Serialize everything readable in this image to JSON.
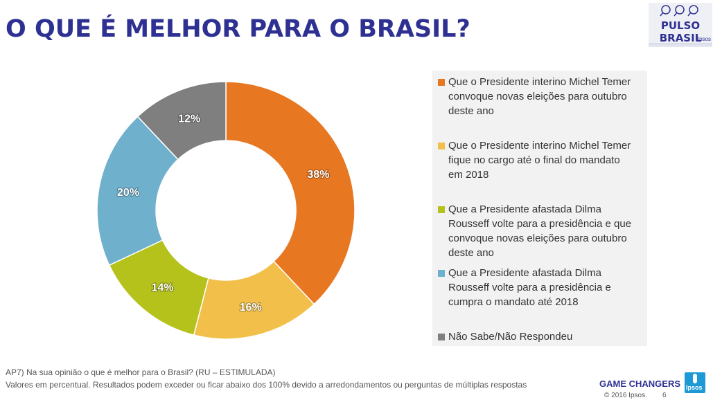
{
  "header": {
    "title": "O QUE É MELHOR PARA O BRASIL?",
    "logo_name": "PULSO BRASIL",
    "logo_sub": "Ipsos"
  },
  "chart_data": {
    "type": "pie",
    "donut": true,
    "title": "",
    "categories": [
      "Que o Presidente interino Michel Temer convoque novas eleições para outubro deste ano",
      "Que o Presidente interino Michel Temer fique no cargo até o final do mandato em 2018",
      "Que a Presidente afastada Dilma Rousseff volte para a presidência e que convoque novas eleições para outubro deste ano",
      "Que a Presidente afastada Dilma Rousseff volte para a presidência e cumpra o mandato até 2018",
      "Não Sabe/Não Respondeu"
    ],
    "values": [
      38,
      16,
      14,
      20,
      12
    ],
    "labels": [
      "38%",
      "16%",
      "14%",
      "20%",
      "12%"
    ],
    "colors": [
      "#e87722",
      "#f2c04a",
      "#b5c21b",
      "#6fb0cc",
      "#7f7f7f"
    ],
    "legend_position": "right"
  },
  "legend": {
    "items": [
      {
        "lines": [
          "Que o Presidente interino Michel Temer",
          "convoque novas eleições para outubro",
          "deste ano"
        ]
      },
      {
        "lines": [
          "Que o Presidente interino Michel Temer",
          "fique no cargo até o final do mandato",
          "em 2018"
        ]
      },
      {
        "lines": [
          "Que a Presidente afastada Dilma",
          "Rousseff volte para a presidência e que",
          "convoque novas eleições para outubro",
          "deste ano"
        ]
      },
      {
        "lines": [
          "Que a Presidente afastada Dilma",
          "Rousseff volte para a presidência e",
          "cumpra o mandato até 2018"
        ]
      },
      {
        "lines": [
          "Não Sabe/Não Respondeu"
        ]
      }
    ]
  },
  "footer": {
    "question": "AP7) Na sua opinião o que é melhor para o Brasil? (RU – ESTIMULADA)",
    "note": "Valores em percentual. Resultados podem exceder ou ficar abaixo dos 100% devido a arredondamentos ou perguntas de  múltiplas respostas",
    "brand": "GAME CHANGERS",
    "copyright": "© 2016 Ipsos.",
    "page_number": "6",
    "ipsos_logo": "Ipsos"
  }
}
